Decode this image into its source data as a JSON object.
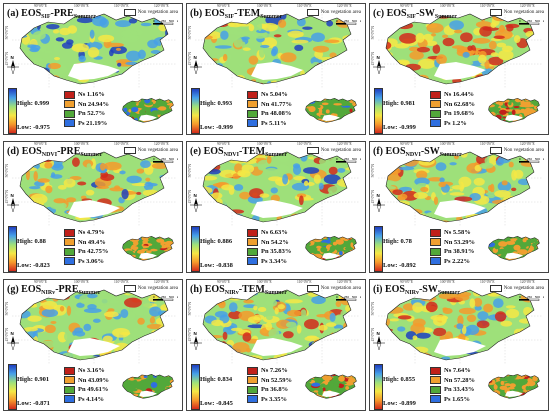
{
  "figure": {
    "non_vegetation_label": "Non vegetation area",
    "lon_ticks": [
      "90°0'0\"E",
      "100°0'0\"E",
      "110°0'0\"E",
      "120°0'0\"E"
    ],
    "lat_ticks": [
      "50°0'0\"N",
      "45°0'0\"N"
    ],
    "high_prefix": "High: ",
    "low_prefix": "Low: ",
    "compass_letter": "N",
    "scale_labels": [
      "0",
      "250",
      "500",
      "km"
    ],
    "legend_colors": {
      "Ns": "#c0201a",
      "Nn": "#f0a030",
      "Pn": "#52a83a",
      "Ps": "#2f6fe0"
    },
    "colorbar_colors": [
      "#1f3fbf",
      "#46a0e8",
      "#9ee07a",
      "#f5e845",
      "#f59a2c",
      "#d22a1c"
    ],
    "panels": [
      {
        "letter": "(a)",
        "eos": "EOS",
        "eos_sub": "SIF",
        "var": "PRE",
        "season": "Summer",
        "high": "0.999",
        "low": "-0.975",
        "legend": [
          {
            "k": "Ns",
            "v": "1.16%"
          },
          {
            "k": "Nn",
            "v": "24.94%"
          },
          {
            "k": "Pn",
            "v": "52.7%"
          },
          {
            "k": "Ps",
            "v": "21.19%"
          }
        ]
      },
      {
        "letter": "(b)",
        "eos": "EOS",
        "eos_sub": "SIF",
        "var": "TEM",
        "season": "Summer",
        "high": "0.993",
        "low": "-0.999",
        "legend": [
          {
            "k": "Ns",
            "v": "5.04%"
          },
          {
            "k": "Nn",
            "v": "41.77%"
          },
          {
            "k": "Pn",
            "v": "48.08%"
          },
          {
            "k": "Ps",
            "v": "5.11%"
          }
        ]
      },
      {
        "letter": "(c)",
        "eos": "EOS",
        "eos_sub": "SIF",
        "var": "SW",
        "season": "Summer",
        "high": "0.981",
        "low": "-0.999",
        "legend": [
          {
            "k": "Ns",
            "v": "16.44%"
          },
          {
            "k": "Nn",
            "v": "62.68%"
          },
          {
            "k": "Pn",
            "v": "19.68%"
          },
          {
            "k": "Ps",
            "v": "1.2%"
          }
        ]
      },
      {
        "letter": "(d)",
        "eos": "EOS",
        "eos_sub": "NDVI",
        "var": "PRE",
        "season": "Summer",
        "high": "0.88",
        "low": "-0.823",
        "legend": [
          {
            "k": "Ns",
            "v": "4.79%"
          },
          {
            "k": "Nn",
            "v": "49.4%"
          },
          {
            "k": "Pn",
            "v": "42.75%"
          },
          {
            "k": "Ps",
            "v": "3.06%"
          }
        ]
      },
      {
        "letter": "(e)",
        "eos": "EOS",
        "eos_sub": "NDVI",
        "var": "TEM",
        "season": "Summer",
        "high": "0.886",
        "low": "-0.838",
        "legend": [
          {
            "k": "Ns",
            "v": "6.63%"
          },
          {
            "k": "Nn",
            "v": "54.2%"
          },
          {
            "k": "Pn",
            "v": "35.83%"
          },
          {
            "k": "Ps",
            "v": "3.34%"
          }
        ]
      },
      {
        "letter": "(f)",
        "eos": "EOS",
        "eos_sub": "NDVI",
        "var": "SW",
        "season": "Summer",
        "high": "0.78",
        "low": "-0.892",
        "legend": [
          {
            "k": "Ns",
            "v": "5.58%"
          },
          {
            "k": "Nn",
            "v": "53.29%"
          },
          {
            "k": "Pn",
            "v": "38.91%"
          },
          {
            "k": "Ps",
            "v": "2.22%"
          }
        ]
      },
      {
        "letter": "(g)",
        "eos": "EOS",
        "eos_sub": "NIRv",
        "var": "PRE",
        "season": "Summer",
        "high": "0.901",
        "low": "-0.871",
        "legend": [
          {
            "k": "Ns",
            "v": "3.16%"
          },
          {
            "k": "Nn",
            "v": "43.09%"
          },
          {
            "k": "Pn",
            "v": "49.61%"
          },
          {
            "k": "Ps",
            "v": "4.14%"
          }
        ]
      },
      {
        "letter": "(h)",
        "eos": "EOS",
        "eos_sub": "NIRv",
        "var": "TEM",
        "season": "Summer",
        "high": "0.834",
        "low": "-0.845",
        "legend": [
          {
            "k": "Ns",
            "v": "7.26%"
          },
          {
            "k": "Nn",
            "v": "52.59%"
          },
          {
            "k": "Pn",
            "v": "36.8%"
          },
          {
            "k": "Ps",
            "v": "3.35%"
          }
        ]
      },
      {
        "letter": "(i)",
        "eos": "EOS",
        "eos_sub": "NIRv",
        "var": "SW",
        "season": "Summer",
        "high": "0.855",
        "low": "-0.899",
        "legend": [
          {
            "k": "Ns",
            "v": "7.64%"
          },
          {
            "k": "Nn",
            "v": "57.28%"
          },
          {
            "k": "Pn",
            "v": "33.43%"
          },
          {
            "k": "Ps",
            "v": "1.65%"
          }
        ]
      }
    ]
  }
}
